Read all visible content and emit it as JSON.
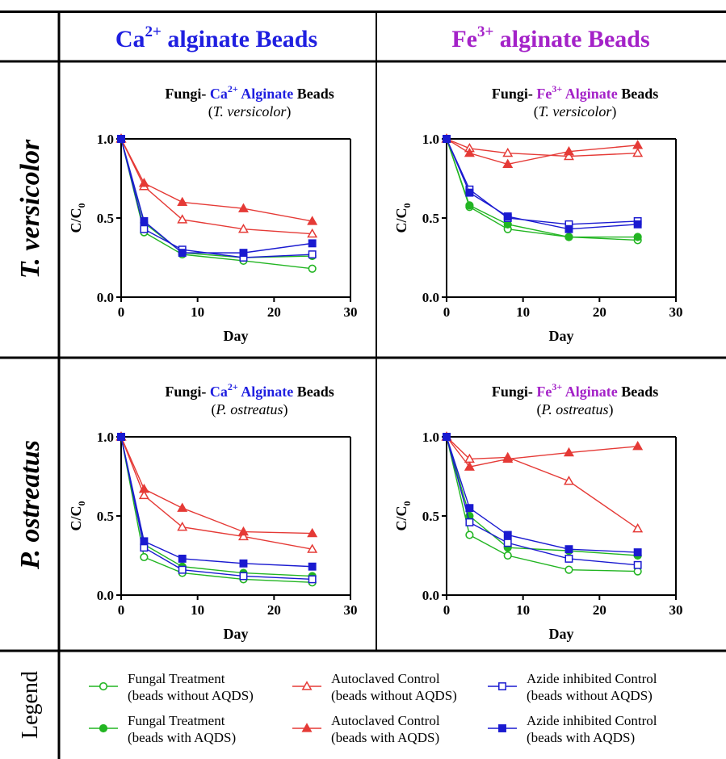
{
  "colors": {
    "fungal": "#22b522",
    "autoclaved": "#e53a36",
    "azide": "#1a1ad0",
    "ca_text": "#1f1fe0",
    "fe_text": "#a422c8"
  },
  "header": {
    "col1": {
      "base": "Ca",
      "sup": "2+",
      "rest": " alginate Beads"
    },
    "col2": {
      "base": "Fe",
      "sup": "3+",
      "rest": " alginate Beads"
    },
    "row1": "T. versicolor",
    "row2": "P. ostreatus",
    "row3": "Legend"
  },
  "chart_data": [
    {
      "type": "line",
      "title": {
        "prefix": "Fungi- ",
        "ion": "Ca",
        "ion_sup": "2+",
        "mid": " Alginate",
        "suffix": " Beads"
      },
      "subtitle": {
        "open": "(",
        "species": "T. versicolor",
        "close": ")"
      },
      "xlabel": "Day",
      "ylabel": {
        "base": "C/C",
        "sub": "0"
      },
      "xlim": [
        0,
        30
      ],
      "ylim": [
        0,
        1.0
      ],
      "xticks": [
        "0",
        "10",
        "20",
        "30"
      ],
      "yticks": [
        "0.0",
        "0.5",
        "1.0"
      ],
      "x": [
        0,
        3,
        8,
        16,
        25
      ],
      "series": [
        {
          "name": "Fungal Treatment (beads without AQDS)",
          "group": "fungal",
          "marker": "circle",
          "filled": false,
          "values": [
            1.0,
            0.41,
            0.27,
            0.23,
            0.18
          ]
        },
        {
          "name": "Fungal Treatment (beads with AQDS)",
          "group": "fungal",
          "marker": "circle",
          "filled": true,
          "values": [
            1.0,
            0.47,
            0.28,
            0.25,
            0.26
          ]
        },
        {
          "name": "Autoclaved Control (beads without AQDS)",
          "group": "autoclaved",
          "marker": "triangle",
          "filled": false,
          "values": [
            1.0,
            0.7,
            0.49,
            0.43,
            0.4
          ]
        },
        {
          "name": "Autoclaved Control (beads with AQDS)",
          "group": "autoclaved",
          "marker": "triangle",
          "filled": true,
          "values": [
            1.0,
            0.72,
            0.6,
            0.56,
            0.48
          ]
        },
        {
          "name": "Azide inhibited Control (beads without AQDS)",
          "group": "azide",
          "marker": "square",
          "filled": false,
          "values": [
            1.0,
            0.43,
            0.3,
            0.25,
            0.27
          ]
        },
        {
          "name": "Azide inhibited Control (beads with AQDS)",
          "group": "azide",
          "marker": "square",
          "filled": true,
          "values": [
            1.0,
            0.48,
            0.28,
            0.28,
            0.34
          ]
        }
      ]
    },
    {
      "type": "line",
      "title": {
        "prefix": "Fungi- ",
        "ion": "Fe",
        "ion_sup": "3+",
        "mid": " Alginate",
        "suffix": " Beads"
      },
      "subtitle": {
        "open": "(",
        "species": "T. versicolor",
        "close": ")"
      },
      "xlabel": "Day",
      "ylabel": {
        "base": "C/C",
        "sub": "0"
      },
      "xlim": [
        0,
        30
      ],
      "ylim": [
        0,
        1.0
      ],
      "xticks": [
        "0",
        "10",
        "20",
        "30"
      ],
      "yticks": [
        "0.0",
        "0.5",
        "1.0"
      ],
      "x": [
        0,
        3,
        8,
        16,
        25
      ],
      "series": [
        {
          "name": "Fungal Treatment (beads without AQDS)",
          "group": "fungal",
          "marker": "circle",
          "filled": false,
          "values": [
            1.0,
            0.57,
            0.43,
            0.38,
            0.36
          ]
        },
        {
          "name": "Fungal Treatment (beads with AQDS)",
          "group": "fungal",
          "marker": "circle",
          "filled": true,
          "values": [
            1.0,
            0.58,
            0.46,
            0.38,
            0.38
          ]
        },
        {
          "name": "Autoclaved Control (beads without AQDS)",
          "group": "autoclaved",
          "marker": "triangle",
          "filled": false,
          "values": [
            1.0,
            0.94,
            0.91,
            0.89,
            0.91
          ]
        },
        {
          "name": "Autoclaved Control (beads with AQDS)",
          "group": "autoclaved",
          "marker": "triangle",
          "filled": true,
          "values": [
            1.0,
            0.91,
            0.84,
            0.92,
            0.96
          ]
        },
        {
          "name": "Azide inhibited Control (beads without AQDS)",
          "group": "azide",
          "marker": "square",
          "filled": false,
          "values": [
            1.0,
            0.68,
            0.5,
            0.46,
            0.48
          ]
        },
        {
          "name": "Azide inhibited Control (beads with AQDS)",
          "group": "azide",
          "marker": "square",
          "filled": true,
          "values": [
            1.0,
            0.66,
            0.51,
            0.43,
            0.46
          ]
        }
      ]
    },
    {
      "type": "line",
      "title": {
        "prefix": "Fungi- ",
        "ion": "Ca",
        "ion_sup": "2+",
        "mid": " Alginate",
        "suffix": " Beads"
      },
      "subtitle": {
        "open": "(",
        "species": "P. ostreatus",
        "close": ")"
      },
      "xlabel": "Day",
      "ylabel": {
        "base": "C/C",
        "sub": "0"
      },
      "xlim": [
        0,
        30
      ],
      "ylim": [
        0,
        1.0
      ],
      "xticks": [
        "0",
        "10",
        "20",
        "30"
      ],
      "yticks": [
        "0.0",
        "0.5",
        "1.0"
      ],
      "x": [
        0,
        3,
        8,
        16,
        25
      ],
      "series": [
        {
          "name": "Fungal Treatment (beads without AQDS)",
          "group": "fungal",
          "marker": "circle",
          "filled": false,
          "values": [
            1.0,
            0.24,
            0.14,
            0.1,
            0.08
          ]
        },
        {
          "name": "Fungal Treatment (beads with AQDS)",
          "group": "fungal",
          "marker": "circle",
          "filled": true,
          "values": [
            1.0,
            0.32,
            0.18,
            0.14,
            0.12
          ]
        },
        {
          "name": "Autoclaved Control (beads without AQDS)",
          "group": "autoclaved",
          "marker": "triangle",
          "filled": false,
          "values": [
            1.0,
            0.63,
            0.43,
            0.37,
            0.29
          ]
        },
        {
          "name": "Autoclaved Control (beads with AQDS)",
          "group": "autoclaved",
          "marker": "triangle",
          "filled": true,
          "values": [
            1.0,
            0.67,
            0.55,
            0.4,
            0.39
          ]
        },
        {
          "name": "Azide inhibited Control (beads without AQDS)",
          "group": "azide",
          "marker": "square",
          "filled": false,
          "values": [
            1.0,
            0.3,
            0.16,
            0.12,
            0.1
          ]
        },
        {
          "name": "Azide inhibited Control (beads with AQDS)",
          "group": "azide",
          "marker": "square",
          "filled": true,
          "values": [
            1.0,
            0.34,
            0.23,
            0.2,
            0.18
          ]
        }
      ]
    },
    {
      "type": "line",
      "title": {
        "prefix": "Fungi- ",
        "ion": "Fe",
        "ion_sup": "3+",
        "mid": " Alginate",
        "suffix": " Beads"
      },
      "subtitle": {
        "open": "(",
        "species": "P. ostreatus",
        "close": ")"
      },
      "xlabel": "Day",
      "ylabel": {
        "base": "C/C",
        "sub": "0"
      },
      "xlim": [
        0,
        30
      ],
      "ylim": [
        0,
        1.0
      ],
      "xticks": [
        "0",
        "10",
        "20",
        "30"
      ],
      "yticks": [
        "0.0",
        "0.5",
        "1.0"
      ],
      "x": [
        0,
        3,
        8,
        16,
        25
      ],
      "series": [
        {
          "name": "Fungal Treatment (beads without AQDS)",
          "group": "fungal",
          "marker": "circle",
          "filled": false,
          "values": [
            1.0,
            0.38,
            0.25,
            0.16,
            0.15
          ]
        },
        {
          "name": "Fungal Treatment (beads with AQDS)",
          "group": "fungal",
          "marker": "circle",
          "filled": true,
          "values": [
            1.0,
            0.5,
            0.3,
            0.28,
            0.25
          ]
        },
        {
          "name": "Autoclaved Control (beads without AQDS)",
          "group": "autoclaved",
          "marker": "triangle",
          "filled": false,
          "values": [
            1.0,
            0.86,
            0.87,
            0.72,
            0.42
          ]
        },
        {
          "name": "Autoclaved Control (beads with AQDS)",
          "group": "autoclaved",
          "marker": "triangle",
          "filled": true,
          "values": [
            1.0,
            0.81,
            0.86,
            0.9,
            0.94
          ]
        },
        {
          "name": "Azide inhibited Control (beads without AQDS)",
          "group": "azide",
          "marker": "square",
          "filled": false,
          "values": [
            1.0,
            0.46,
            0.33,
            0.23,
            0.19
          ]
        },
        {
          "name": "Azide inhibited Control (beads with AQDS)",
          "group": "azide",
          "marker": "square",
          "filled": true,
          "values": [
            1.0,
            0.55,
            0.38,
            0.29,
            0.27
          ]
        }
      ]
    }
  ],
  "legend": [
    {
      "line1": "Fungal Treatment",
      "line2": "(beads without AQDS)",
      "group": "fungal",
      "marker": "circle",
      "filled": false
    },
    {
      "line1": "Autoclaved Control",
      "line2": "(beads without AQDS)",
      "group": "autoclaved",
      "marker": "triangle",
      "filled": false
    },
    {
      "line1": "Azide inhibited Control",
      "line2": "(beads without AQDS)",
      "group": "azide",
      "marker": "square",
      "filled": false
    },
    {
      "line1": "Fungal Treatment",
      "line2": "(beads with AQDS)",
      "group": "fungal",
      "marker": "circle",
      "filled": true
    },
    {
      "line1": "Autoclaved Control",
      "line2": "(beads with AQDS)",
      "group": "autoclaved",
      "marker": "triangle",
      "filled": true
    },
    {
      "line1": "Azide inhibited Control",
      "line2": "(beads with AQDS)",
      "group": "azide",
      "marker": "square",
      "filled": true
    }
  ]
}
